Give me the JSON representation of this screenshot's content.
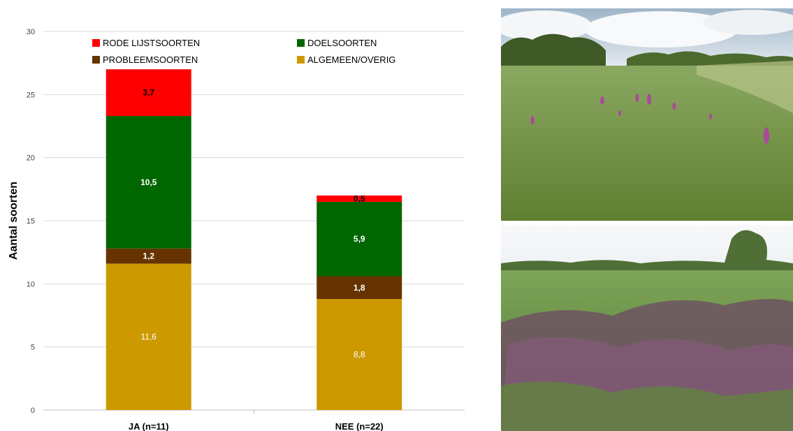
{
  "chart_data": {
    "type": "bar",
    "stacked": true,
    "categories": [
      "JA (n=11)",
      "NEE (n=22)"
    ],
    "ylabel": "Aantal soorten",
    "xlabel": "",
    "ylim": [
      0,
      30
    ],
    "yticks": [
      0,
      5,
      10,
      15,
      20,
      25,
      30
    ],
    "grid": true,
    "legend_position": "top",
    "series": [
      {
        "name": "ALGEMEEN/OVERIG",
        "color": "#CC9900",
        "values": [
          11.6,
          8.8
        ],
        "labels": [
          "11,6",
          "8,8"
        ],
        "label_color": "#ffffff"
      },
      {
        "name": "PROBLEEMSOORTEN",
        "color": "#663300",
        "values": [
          1.2,
          1.8
        ],
        "labels": [
          "1,2",
          "1,8"
        ],
        "label_color": "#ffffff"
      },
      {
        "name": "DOELSOORTEN",
        "color": "#006600",
        "values": [
          10.5,
          5.9
        ],
        "labels": [
          "10,5",
          "5,9"
        ],
        "label_color": "#ffffff"
      },
      {
        "name": "RODE LIJSTSOORTEN",
        "color": "#FF0000",
        "values": [
          3.7,
          0.5
        ],
        "labels": [
          "3,7",
          "0,5"
        ],
        "label_color": "#000000"
      }
    ],
    "legend_order": [
      "RODE LIJSTSOORTEN",
      "DOELSOORTEN",
      "PROBLEEMSOORTEN",
      "ALGEMEEN/OVERIG"
    ]
  },
  "photos": [
    {
      "name": "orchid-meadow-photo",
      "subject": "grassland with purple orchids"
    },
    {
      "name": "lousewort-meadow-photo",
      "subject": "grassland with pink flowering plants"
    }
  ]
}
